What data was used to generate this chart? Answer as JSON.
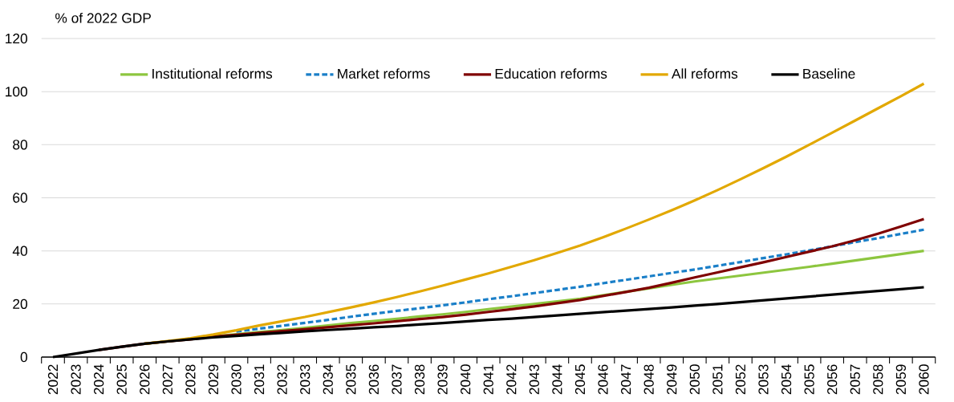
{
  "chart_data": {
    "type": "line",
    "ylabel": "% of 2022 GDP",
    "categories": [
      "2022",
      "2023",
      "2024",
      "2025",
      "2026",
      "2027",
      "2028",
      "2029",
      "2030",
      "2031",
      "2032",
      "2033",
      "2034",
      "2035",
      "2036",
      "2037",
      "2038",
      "2039",
      "2040",
      "2041",
      "2042",
      "2043",
      "2044",
      "2045",
      "2046",
      "2047",
      "2048",
      "2049",
      "2050",
      "2051",
      "2052",
      "2053",
      "2054",
      "2055",
      "2056",
      "2057",
      "2058",
      "2059",
      "2060"
    ],
    "ylim": [
      0,
      120
    ],
    "yticks": [
      0,
      20,
      40,
      60,
      80,
      100,
      120
    ],
    "grid": "y",
    "legend": "top",
    "line_style": "solid",
    "series": [
      {
        "name": "Institutional reforms",
        "color": "#8dc63f",
        "values": [
          null,
          null,
          null,
          null,
          5,
          5.9,
          6.8,
          7.8,
          8.6,
          9.4,
          10.2,
          11,
          11.9,
          12.8,
          13.6,
          14.4,
          15.3,
          16.1,
          17,
          18,
          19,
          20,
          21,
          22,
          23.3,
          24.6,
          25.9,
          27.2,
          28.5,
          29.6,
          30.7,
          31.8,
          32.9,
          34,
          35.2,
          36.4,
          37.6,
          38.8,
          40
        ]
      },
      {
        "name": "Market reforms",
        "color": "#1a7fc8",
        "line_style": "dashed",
        "values": [
          null,
          null,
          null,
          null,
          null,
          null,
          null,
          null,
          9.6,
          10.7,
          11.8,
          12.9,
          14,
          15.2,
          16.3,
          17.4,
          18.4,
          19.5,
          20.6,
          21.8,
          22.9,
          24.1,
          25.3,
          26.5,
          27.8,
          29.1,
          30.4,
          31.7,
          33,
          34.4,
          35.8,
          37.3,
          38.7,
          40.2,
          41.7,
          43.3,
          44.8,
          46.4,
          48
        ]
      },
      {
        "name": "Education reforms",
        "color": "#7f0000",
        "values": [
          null,
          null,
          2.7,
          3.9,
          5,
          5.9,
          6.7,
          7.7,
          8.4,
          9.1,
          9.8,
          10.5,
          11.2,
          12,
          12.7,
          13.5,
          14.3,
          15.1,
          16,
          17,
          18,
          19.1,
          20.3,
          21.5,
          23,
          24.5,
          26.1,
          28,
          30,
          31.9,
          33.8,
          35.7,
          37.7,
          39.7,
          41.7,
          44,
          46.5,
          49.2,
          52
        ]
      },
      {
        "name": "All reforms",
        "color": "#e2a800",
        "values": [
          null,
          null,
          null,
          null,
          5,
          6,
          7.1,
          8.5,
          10.1,
          11.9,
          13.5,
          15.1,
          16.9,
          18.7,
          20.6,
          22.6,
          24.7,
          26.9,
          29.2,
          31.5,
          34,
          36.5,
          39.2,
          42,
          45.1,
          48.4,
          51.8,
          55.3,
          59,
          62.9,
          67,
          71.2,
          75.5,
          80,
          84.5,
          89.1,
          93.7,
          98.3,
          103
        ]
      },
      {
        "name": "Baseline",
        "color": "#000000",
        "values": [
          0,
          1.3,
          2.7,
          3.9,
          5,
          5.9,
          6.7,
          7.4,
          8,
          8.6,
          9.1,
          9.7,
          10.2,
          10.7,
          11.2,
          11.7,
          12.3,
          12.8,
          13.4,
          14,
          14.5,
          15.1,
          15.7,
          16.3,
          16.9,
          17.5,
          18.1,
          18.7,
          19.4,
          20,
          20.7,
          21.4,
          22.1,
          22.8,
          23.5,
          24.2,
          24.9,
          25.6,
          26.3
        ]
      }
    ]
  }
}
